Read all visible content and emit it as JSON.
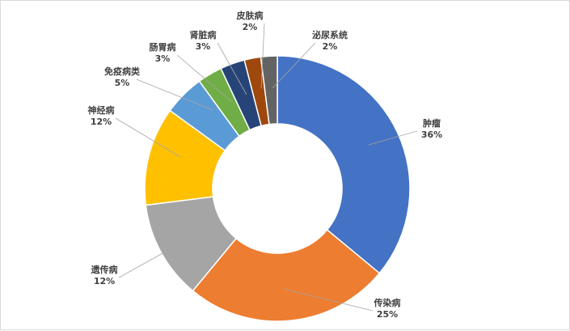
{
  "chart_data": {
    "type": "pie",
    "donut": true,
    "title": "",
    "legend": "none",
    "slices": [
      {
        "name": "肿瘤",
        "value": 36,
        "label": "36%",
        "color": "#4472C4"
      },
      {
        "name": "传染病",
        "value": 25,
        "label": "25%",
        "color": "#ED7D31"
      },
      {
        "name": "遗传病",
        "value": 12,
        "label": "12%",
        "color": "#A5A5A5"
      },
      {
        "name": "神经病",
        "value": 12,
        "label": "12%",
        "color": "#FFC000"
      },
      {
        "name": "免疫病类",
        "value": 5,
        "label": "5%",
        "color": "#5B9BD5"
      },
      {
        "name": "肠胃病",
        "value": 3,
        "label": "3%",
        "color": "#70AD47"
      },
      {
        "name": "肾脏病",
        "value": 3,
        "label": "3%",
        "color": "#264478"
      },
      {
        "name": "皮肤病",
        "value": 2,
        "label": "2%",
        "color": "#9E480E"
      },
      {
        "name": "泌尿系统",
        "value": 2,
        "label": "2%",
        "color": "#636363"
      }
    ]
  }
}
